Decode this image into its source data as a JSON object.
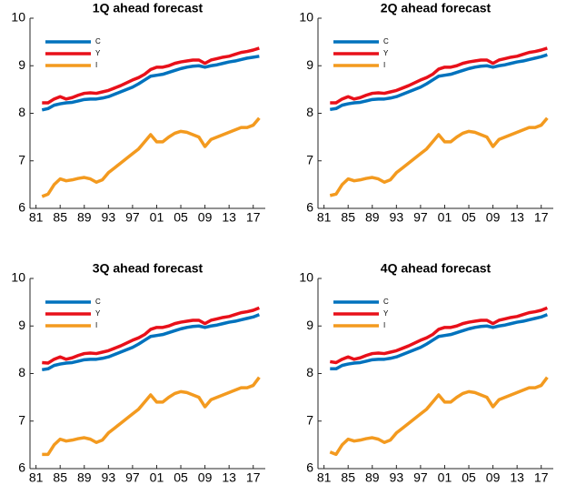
{
  "chart_data": [
    {
      "type": "line",
      "title": "1Q ahead forecast",
      "x": [
        1982,
        1983,
        1984,
        1985,
        1986,
        1987,
        1988,
        1989,
        1990,
        1991,
        1992,
        1993,
        1994,
        1995,
        1996,
        1997,
        1998,
        1999,
        2000,
        2001,
        2002,
        2003,
        2004,
        2005,
        2006,
        2007,
        2008,
        2009,
        2010,
        2011,
        2012,
        2013,
        2014,
        2015,
        2016,
        2017,
        2018
      ],
      "series": [
        {
          "name": "C",
          "color": "#0072bd",
          "values": [
            8.07,
            8.1,
            8.17,
            8.2,
            8.22,
            8.23,
            8.26,
            8.29,
            8.3,
            8.3,
            8.32,
            8.35,
            8.4,
            8.45,
            8.5,
            8.55,
            8.62,
            8.7,
            8.78,
            8.8,
            8.82,
            8.86,
            8.9,
            8.94,
            8.97,
            8.99,
            9.0,
            8.97,
            9.0,
            9.02,
            9.05,
            9.08,
            9.1,
            9.13,
            9.16,
            9.18,
            9.2
          ]
        },
        {
          "name": "Y",
          "color": "#e8101a",
          "values": [
            8.22,
            8.22,
            8.3,
            8.35,
            8.3,
            8.33,
            8.38,
            8.42,
            8.43,
            8.42,
            8.45,
            8.48,
            8.53,
            8.58,
            8.64,
            8.7,
            8.75,
            8.82,
            8.92,
            8.97,
            8.97,
            9.0,
            9.05,
            9.08,
            9.1,
            9.12,
            9.12,
            9.05,
            9.12,
            9.15,
            9.18,
            9.2,
            9.24,
            9.28,
            9.3,
            9.33,
            9.37
          ]
        },
        {
          "name": "I",
          "color": "#f39a1f",
          "values": [
            6.25,
            6.3,
            6.5,
            6.62,
            6.58,
            6.6,
            6.63,
            6.65,
            6.62,
            6.55,
            6.6,
            6.75,
            6.85,
            6.95,
            7.05,
            7.15,
            7.25,
            7.4,
            7.55,
            7.4,
            7.4,
            7.5,
            7.58,
            7.62,
            7.6,
            7.55,
            7.5,
            7.3,
            7.45,
            7.5,
            7.55,
            7.6,
            7.65,
            7.7,
            7.7,
            7.75,
            7.9
          ]
        }
      ],
      "xlim": [
        1980,
        2019
      ],
      "ylim": [
        6,
        10
      ],
      "xticks": [
        {
          "value": 1981,
          "label": "81"
        },
        {
          "value": 1985,
          "label": "85"
        },
        {
          "value": 1989,
          "label": "89"
        },
        {
          "value": 1993,
          "label": "93"
        },
        {
          "value": 1997,
          "label": "97"
        },
        {
          "value": 2001,
          "label": "01"
        },
        {
          "value": 2005,
          "label": "05"
        },
        {
          "value": 2009,
          "label": "09"
        },
        {
          "value": 2013,
          "label": "13"
        },
        {
          "value": 2017,
          "label": "17"
        }
      ],
      "yticks": [
        6,
        7,
        8,
        9,
        10
      ],
      "legend": "upper left"
    },
    {
      "type": "line",
      "title": "2Q ahead forecast",
      "x": [
        1982,
        1983,
        1984,
        1985,
        1986,
        1987,
        1988,
        1989,
        1990,
        1991,
        1992,
        1993,
        1994,
        1995,
        1996,
        1997,
        1998,
        1999,
        2000,
        2001,
        2002,
        2003,
        2004,
        2005,
        2006,
        2007,
        2008,
        2009,
        2010,
        2011,
        2012,
        2013,
        2014,
        2015,
        2016,
        2017,
        2018
      ],
      "series": [
        {
          "name": "C",
          "color": "#0072bd",
          "values": [
            8.08,
            8.1,
            8.17,
            8.2,
            8.22,
            8.23,
            8.26,
            8.29,
            8.3,
            8.3,
            8.32,
            8.35,
            8.4,
            8.45,
            8.5,
            8.55,
            8.62,
            8.7,
            8.78,
            8.8,
            8.82,
            8.86,
            8.9,
            8.94,
            8.97,
            8.99,
            9.0,
            8.97,
            9.0,
            9.02,
            9.05,
            9.08,
            9.1,
            9.13,
            9.16,
            9.19,
            9.23
          ]
        },
        {
          "name": "Y",
          "color": "#e8101a",
          "values": [
            8.22,
            8.22,
            8.3,
            8.35,
            8.3,
            8.33,
            8.38,
            8.42,
            8.43,
            8.42,
            8.45,
            8.48,
            8.53,
            8.58,
            8.64,
            8.7,
            8.75,
            8.82,
            8.93,
            8.97,
            8.97,
            9.0,
            9.05,
            9.08,
            9.1,
            9.12,
            9.12,
            9.05,
            9.12,
            9.15,
            9.18,
            9.2,
            9.24,
            9.28,
            9.3,
            9.33,
            9.37
          ]
        },
        {
          "name": "I",
          "color": "#f39a1f",
          "values": [
            6.27,
            6.3,
            6.5,
            6.62,
            6.58,
            6.6,
            6.63,
            6.65,
            6.62,
            6.55,
            6.6,
            6.75,
            6.85,
            6.95,
            7.05,
            7.15,
            7.25,
            7.4,
            7.55,
            7.4,
            7.4,
            7.5,
            7.58,
            7.62,
            7.6,
            7.55,
            7.5,
            7.3,
            7.45,
            7.5,
            7.55,
            7.6,
            7.65,
            7.7,
            7.7,
            7.75,
            7.9
          ]
        }
      ],
      "xlim": [
        1980,
        2019
      ],
      "ylim": [
        6,
        10
      ],
      "xticks": [
        {
          "value": 1981,
          "label": "81"
        },
        {
          "value": 1985,
          "label": "85"
        },
        {
          "value": 1989,
          "label": "89"
        },
        {
          "value": 1993,
          "label": "93"
        },
        {
          "value": 1997,
          "label": "97"
        },
        {
          "value": 2001,
          "label": "01"
        },
        {
          "value": 2005,
          "label": "05"
        },
        {
          "value": 2009,
          "label": "09"
        },
        {
          "value": 2013,
          "label": "13"
        },
        {
          "value": 2017,
          "label": "17"
        }
      ],
      "yticks": [
        6,
        7,
        8,
        9,
        10
      ],
      "legend": "upper left"
    },
    {
      "type": "line",
      "title": "3Q ahead forecast",
      "x": [
        1982,
        1983,
        1984,
        1985,
        1986,
        1987,
        1988,
        1989,
        1990,
        1991,
        1992,
        1993,
        1994,
        1995,
        1996,
        1997,
        1998,
        1999,
        2000,
        2001,
        2002,
        2003,
        2004,
        2005,
        2006,
        2007,
        2008,
        2009,
        2010,
        2011,
        2012,
        2013,
        2014,
        2015,
        2016,
        2017,
        2018
      ],
      "series": [
        {
          "name": "C",
          "color": "#0072bd",
          "values": [
            8.08,
            8.1,
            8.17,
            8.2,
            8.22,
            8.23,
            8.26,
            8.29,
            8.3,
            8.3,
            8.32,
            8.35,
            8.4,
            8.45,
            8.5,
            8.55,
            8.62,
            8.7,
            8.78,
            8.8,
            8.82,
            8.86,
            8.9,
            8.94,
            8.97,
            8.99,
            9.0,
            8.97,
            9.0,
            9.02,
            9.05,
            9.08,
            9.1,
            9.13,
            9.16,
            9.19,
            9.24
          ]
        },
        {
          "name": "Y",
          "color": "#e8101a",
          "values": [
            8.23,
            8.22,
            8.3,
            8.35,
            8.3,
            8.33,
            8.38,
            8.42,
            8.43,
            8.42,
            8.45,
            8.48,
            8.53,
            8.58,
            8.64,
            8.7,
            8.75,
            8.82,
            8.93,
            8.97,
            8.97,
            9.0,
            9.05,
            9.08,
            9.1,
            9.12,
            9.12,
            9.05,
            9.12,
            9.15,
            9.18,
            9.2,
            9.24,
            9.28,
            9.3,
            9.33,
            9.38
          ]
        },
        {
          "name": "I",
          "color": "#f39a1f",
          "values": [
            6.3,
            6.3,
            6.5,
            6.62,
            6.58,
            6.6,
            6.63,
            6.65,
            6.62,
            6.55,
            6.6,
            6.75,
            6.85,
            6.95,
            7.05,
            7.15,
            7.25,
            7.4,
            7.55,
            7.4,
            7.4,
            7.5,
            7.58,
            7.62,
            7.6,
            7.55,
            7.5,
            7.3,
            7.45,
            7.5,
            7.55,
            7.6,
            7.65,
            7.7,
            7.7,
            7.75,
            7.92
          ]
        }
      ],
      "xlim": [
        1980,
        2019
      ],
      "ylim": [
        6,
        10
      ],
      "xticks": [
        {
          "value": 1981,
          "label": "81"
        },
        {
          "value": 1985,
          "label": "85"
        },
        {
          "value": 1989,
          "label": "89"
        },
        {
          "value": 1993,
          "label": "93"
        },
        {
          "value": 1997,
          "label": "97"
        },
        {
          "value": 2001,
          "label": "01"
        },
        {
          "value": 2005,
          "label": "05"
        },
        {
          "value": 2009,
          "label": "09"
        },
        {
          "value": 2013,
          "label": "13"
        },
        {
          "value": 2017,
          "label": "17"
        }
      ],
      "yticks": [
        6,
        7,
        8,
        9,
        10
      ],
      "legend": "upper left"
    },
    {
      "type": "line",
      "title": "4Q ahead forecast",
      "x": [
        1982,
        1983,
        1984,
        1985,
        1986,
        1987,
        1988,
        1989,
        1990,
        1991,
        1992,
        1993,
        1994,
        1995,
        1996,
        1997,
        1998,
        1999,
        2000,
        2001,
        2002,
        2003,
        2004,
        2005,
        2006,
        2007,
        2008,
        2009,
        2010,
        2011,
        2012,
        2013,
        2014,
        2015,
        2016,
        2017,
        2018
      ],
      "series": [
        {
          "name": "C",
          "color": "#0072bd",
          "values": [
            8.1,
            8.1,
            8.17,
            8.2,
            8.22,
            8.23,
            8.26,
            8.29,
            8.3,
            8.3,
            8.32,
            8.35,
            8.4,
            8.45,
            8.5,
            8.55,
            8.62,
            8.7,
            8.78,
            8.8,
            8.82,
            8.86,
            8.9,
            8.94,
            8.97,
            8.99,
            9.0,
            8.97,
            9.0,
            9.02,
            9.05,
            9.08,
            9.1,
            9.13,
            9.16,
            9.19,
            9.24
          ]
        },
        {
          "name": "Y",
          "color": "#e8101a",
          "values": [
            8.25,
            8.23,
            8.3,
            8.35,
            8.3,
            8.33,
            8.38,
            8.42,
            8.43,
            8.42,
            8.45,
            8.48,
            8.53,
            8.58,
            8.64,
            8.7,
            8.75,
            8.82,
            8.93,
            8.97,
            8.97,
            9.0,
            9.05,
            9.08,
            9.1,
            9.12,
            9.12,
            9.05,
            9.12,
            9.15,
            9.18,
            9.2,
            9.24,
            9.28,
            9.3,
            9.33,
            9.38
          ]
        },
        {
          "name": "I",
          "color": "#f39a1f",
          "values": [
            6.35,
            6.3,
            6.5,
            6.62,
            6.58,
            6.6,
            6.63,
            6.65,
            6.62,
            6.55,
            6.6,
            6.75,
            6.85,
            6.95,
            7.05,
            7.15,
            7.25,
            7.4,
            7.55,
            7.4,
            7.4,
            7.5,
            7.58,
            7.62,
            7.6,
            7.55,
            7.5,
            7.3,
            7.45,
            7.5,
            7.55,
            7.6,
            7.65,
            7.7,
            7.7,
            7.75,
            7.92
          ]
        }
      ],
      "xlim": [
        1980,
        2019
      ],
      "ylim": [
        6,
        10
      ],
      "xticks": [
        {
          "value": 1981,
          "label": "81"
        },
        {
          "value": 1985,
          "label": "85"
        },
        {
          "value": 1989,
          "label": "89"
        },
        {
          "value": 1993,
          "label": "93"
        },
        {
          "value": 1997,
          "label": "97"
        },
        {
          "value": 2001,
          "label": "01"
        },
        {
          "value": 2005,
          "label": "05"
        },
        {
          "value": 2009,
          "label": "09"
        },
        {
          "value": 2013,
          "label": "13"
        },
        {
          "value": 2017,
          "label": "17"
        }
      ],
      "yticks": [
        6,
        7,
        8,
        9,
        10
      ],
      "legend": "upper left"
    }
  ]
}
